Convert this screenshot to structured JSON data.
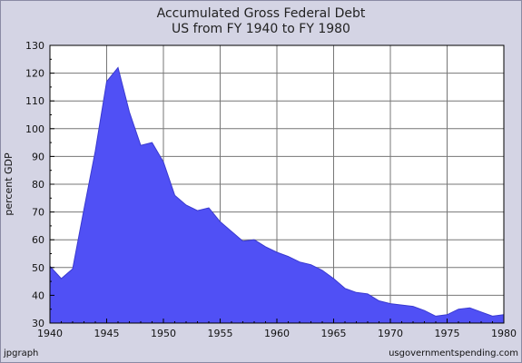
{
  "chart_data": {
    "type": "area",
    "title": "Accumulated Gross Federal Debt",
    "subtitle": "US from FY 1940 to FY 1980",
    "xlabel": "",
    "ylabel": "percent GDP",
    "xlim": [
      1940,
      1980
    ],
    "ylim": [
      30,
      130
    ],
    "x_ticks": [
      1940,
      1945,
      1950,
      1955,
      1960,
      1965,
      1970,
      1975,
      1980
    ],
    "y_ticks": [
      30,
      40,
      50,
      60,
      70,
      80,
      90,
      100,
      110,
      120,
      130
    ],
    "grid": true,
    "fill_color": "#5050f5",
    "line_color": "#3a3ad0",
    "plot_background": "#ffffff",
    "x": [
      1940,
      1941,
      1942,
      1943,
      1944,
      1945,
      1946,
      1947,
      1948,
      1949,
      1950,
      1951,
      1952,
      1953,
      1954,
      1955,
      1956,
      1957,
      1958,
      1959,
      1960,
      1961,
      1962,
      1963,
      1964,
      1965,
      1966,
      1967,
      1968,
      1969,
      1970,
      1971,
      1972,
      1973,
      1974,
      1975,
      1976,
      1977,
      1978,
      1979,
      1980
    ],
    "values": [
      50.5,
      46,
      49.5,
      71,
      92,
      117,
      122,
      106,
      94,
      95,
      88,
      76,
      72.5,
      70.5,
      71.5,
      66.5,
      63,
      59.5,
      60,
      57.5,
      55.5,
      54,
      52,
      51,
      49,
      46,
      42.5,
      41,
      40.5,
      38,
      37,
      36.5,
      36,
      34.5,
      32.5,
      33,
      35,
      35.5,
      34,
      32.5,
      33
    ]
  },
  "footer": {
    "left": "jpgraph",
    "right": "usgovernmentspending.com"
  }
}
